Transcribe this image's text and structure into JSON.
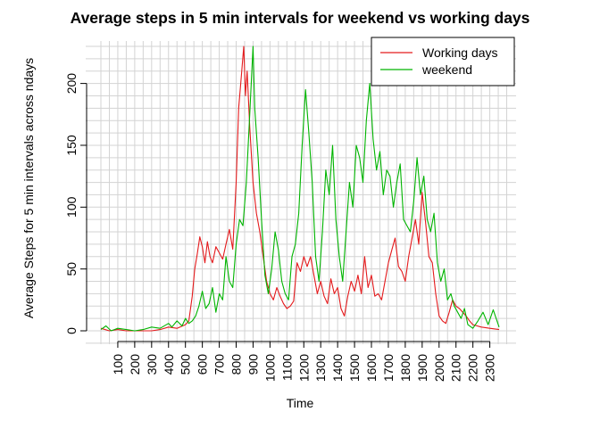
{
  "chart_data": {
    "type": "line",
    "title": "Average steps in 5 min intervals for weekend vs working days",
    "xlabel": "Time",
    "ylabel": "Average Steps for 5 min intervals across ndays",
    "xlim": [
      0,
      2355
    ],
    "ylim": [
      0,
      230
    ],
    "x_ticks": [
      100,
      200,
      300,
      400,
      500,
      600,
      700,
      800,
      900,
      1000,
      1100,
      1200,
      1300,
      1400,
      1500,
      1600,
      1700,
      1800,
      1900,
      2000,
      2100,
      2200,
      2300
    ],
    "x_tick_labels": [
      "100",
      "200",
      "300",
      "400",
      "500",
      "600",
      "700",
      "800",
      "900",
      "1000",
      "1100",
      "1200",
      "1300",
      "1400",
      "1500",
      "1600",
      "1700",
      "1800",
      "1900",
      "2000",
      "2100",
      "2200",
      "2300"
    ],
    "y_ticks": [
      0,
      50,
      100,
      150,
      200
    ],
    "y_tick_labels": [
      "0",
      "50",
      "100",
      "150",
      "200"
    ],
    "grid": true,
    "legend_position": "top-right",
    "series": [
      {
        "name": "Working days",
        "color": "#e41a1c",
        "x": [
          0,
          50,
          100,
          150,
          200,
          250,
          300,
          350,
          400,
          450,
          500,
          520,
          540,
          555,
          570,
          585,
          600,
          615,
          630,
          645,
          660,
          680,
          700,
          720,
          740,
          760,
          780,
          800,
          815,
          830,
          845,
          855,
          865,
          880,
          900,
          920,
          940,
          960,
          980,
          1000,
          1020,
          1040,
          1060,
          1080,
          1100,
          1120,
          1140,
          1160,
          1180,
          1200,
          1220,
          1240,
          1260,
          1280,
          1300,
          1320,
          1340,
          1360,
          1380,
          1400,
          1420,
          1440,
          1460,
          1480,
          1500,
          1520,
          1540,
          1560,
          1580,
          1600,
          1620,
          1640,
          1660,
          1680,
          1700,
          1720,
          1740,
          1760,
          1780,
          1800,
          1820,
          1840,
          1860,
          1880,
          1900,
          1920,
          1940,
          1960,
          1980,
          2000,
          2020,
          2040,
          2060,
          2080,
          2100,
          2120,
          2140,
          2160,
          2180,
          2200,
          2250,
          2300,
          2355
        ],
        "values": [
          2,
          0,
          1,
          0,
          0,
          0,
          0,
          1,
          3,
          2,
          5,
          8,
          28,
          50,
          62,
          76,
          68,
          55,
          72,
          60,
          55,
          68,
          63,
          58,
          70,
          82,
          66,
          120,
          180,
          205,
          230,
          190,
          210,
          165,
          120,
          95,
          80,
          60,
          40,
          30,
          25,
          35,
          28,
          22,
          18,
          20,
          24,
          55,
          48,
          60,
          52,
          60,
          45,
          30,
          40,
          28,
          22,
          42,
          30,
          35,
          18,
          12,
          28,
          40,
          32,
          45,
          30,
          60,
          35,
          45,
          28,
          30,
          25,
          40,
          55,
          65,
          75,
          52,
          48,
          40,
          60,
          75,
          90,
          70,
          112,
          88,
          60,
          55,
          30,
          12,
          8,
          6,
          15,
          25,
          20,
          18,
          15,
          12,
          8,
          5,
          3,
          2,
          1
        ]
      },
      {
        "name": "weekend",
        "color": "#00b400",
        "x": [
          0,
          30,
          60,
          100,
          150,
          200,
          250,
          300,
          350,
          400,
          420,
          450,
          480,
          500,
          520,
          540,
          560,
          580,
          600,
          620,
          640,
          660,
          680,
          700,
          720,
          740,
          760,
          780,
          800,
          820,
          840,
          860,
          880,
          900,
          910,
          930,
          950,
          970,
          990,
          1010,
          1030,
          1050,
          1070,
          1090,
          1110,
          1130,
          1150,
          1170,
          1190,
          1210,
          1230,
          1250,
          1270,
          1290,
          1310,
          1330,
          1350,
          1370,
          1390,
          1410,
          1430,
          1450,
          1470,
          1490,
          1510,
          1530,
          1550,
          1570,
          1590,
          1610,
          1630,
          1650,
          1670,
          1690,
          1710,
          1730,
          1750,
          1770,
          1790,
          1810,
          1830,
          1850,
          1870,
          1890,
          1910,
          1930,
          1950,
          1970,
          1990,
          2010,
          2030,
          2050,
          2070,
          2090,
          2110,
          2130,
          2150,
          2170,
          2200,
          2230,
          2260,
          2290,
          2320,
          2355
        ],
        "values": [
          1,
          4,
          0,
          2,
          1,
          0,
          1,
          3,
          2,
          6,
          3,
          8,
          4,
          10,
          6,
          8,
          12,
          20,
          32,
          18,
          22,
          35,
          15,
          30,
          25,
          60,
          40,
          35,
          70,
          90,
          85,
          120,
          175,
          230,
          180,
          140,
          90,
          45,
          30,
          50,
          80,
          65,
          40,
          30,
          25,
          60,
          70,
          95,
          150,
          195,
          160,
          120,
          60,
          40,
          80,
          130,
          110,
          150,
          90,
          60,
          40,
          80,
          120,
          100,
          150,
          140,
          120,
          170,
          200,
          155,
          130,
          145,
          110,
          130,
          125,
          100,
          120,
          135,
          90,
          85,
          80,
          105,
          140,
          110,
          125,
          90,
          80,
          95,
          55,
          40,
          50,
          25,
          30,
          20,
          15,
          10,
          18,
          5,
          2,
          8,
          15,
          5,
          17,
          3
        ]
      }
    ]
  }
}
